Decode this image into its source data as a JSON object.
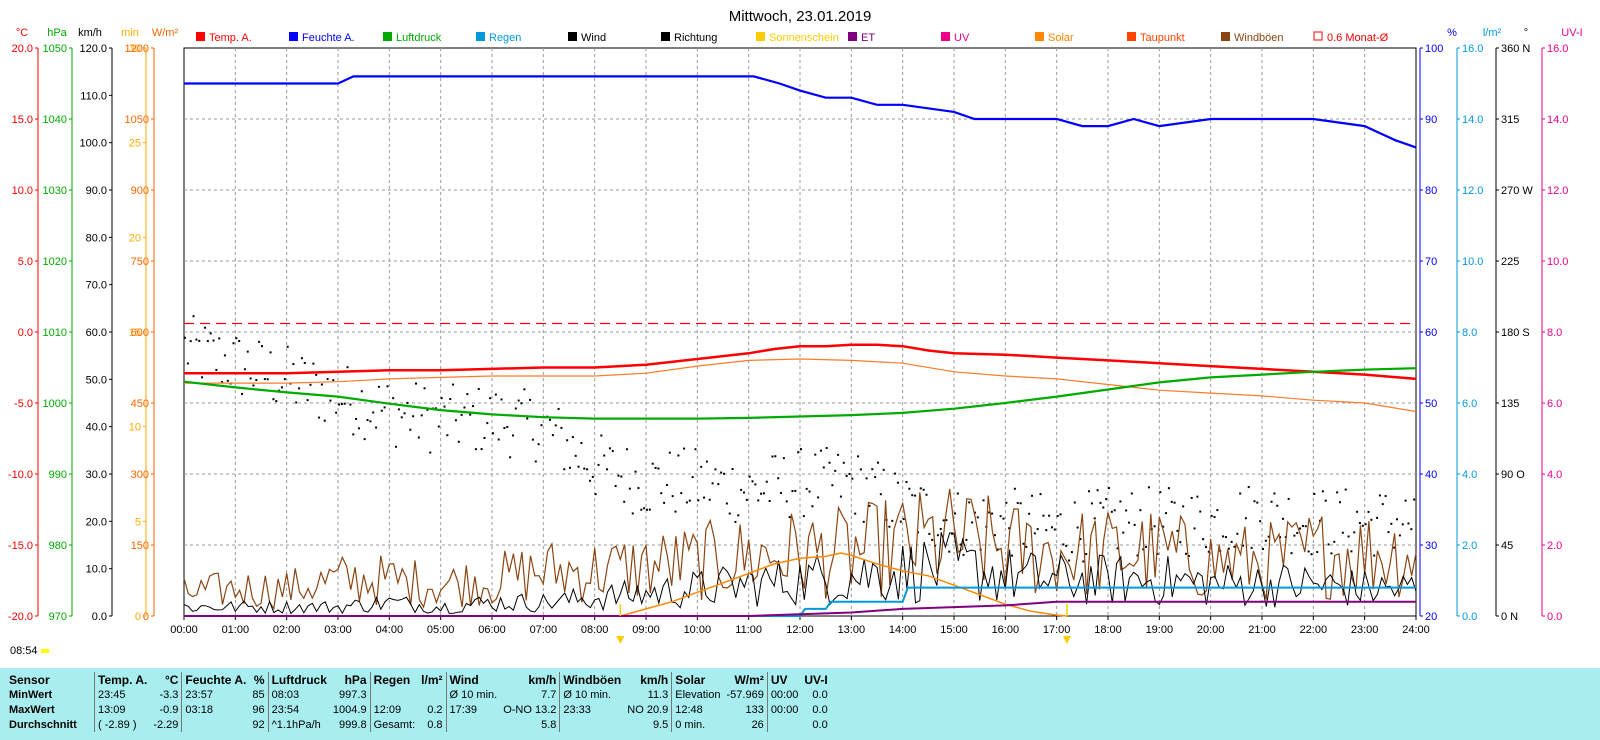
{
  "title": "Mittwoch, 23.01.2019",
  "current_time": "08:54",
  "legend": [
    {
      "label": "Temp. A.",
      "color": "#ff0000"
    },
    {
      "label": "Feuchte A.",
      "color": "#0000ff"
    },
    {
      "label": "Luftdruck",
      "color": "#00aa00"
    },
    {
      "label": "Regen",
      "color": "#0099dd"
    },
    {
      "label": "Wind",
      "color": "#000000"
    },
    {
      "label": "Richtung",
      "color": "#000000"
    },
    {
      "label": "Sonnenschein",
      "color": "#ffcc00"
    },
    {
      "label": "ET",
      "color": "#800080"
    },
    {
      "label": "UV",
      "color": "#ee0088"
    },
    {
      "label": "Solar",
      "color": "#ff8800"
    },
    {
      "label": "Taupunkt",
      "color": "#ff4400"
    },
    {
      "label": "Windböen",
      "color": "#8b4513"
    },
    {
      "label": "0.6 Monat-Ø",
      "color": "#ff0000",
      "outline": true
    }
  ],
  "axes": {
    "temp": {
      "unit": "°C",
      "ticks": [
        "20.0",
        "15.0",
        "10.0",
        "5.0",
        "0.0",
        "-5.0",
        "-10.0",
        "-15.0",
        "-20.0"
      ],
      "color": "#ff0000"
    },
    "press": {
      "unit": "hPa",
      "ticks": [
        "1050",
        "1040",
        "1030",
        "1020",
        "1010",
        "1000",
        "990",
        "980",
        "970"
      ],
      "color": "#00aa00"
    },
    "wind": {
      "unit": "km/h",
      "ticks": [
        "120.0",
        "110.0",
        "100.0",
        "90.0",
        "80.0",
        "70.0",
        "60.0",
        "50.0",
        "40.0",
        "30.0",
        "20.0",
        "10.0",
        "0.0"
      ],
      "color": "#000000"
    },
    "sunmin": {
      "unit": "min",
      "ticks": [
        "30",
        "25",
        "20",
        "15",
        "10",
        "5",
        "0"
      ],
      "color": "#ffaa00"
    },
    "solar": {
      "unit": "W/m²",
      "ticks": [
        "1200",
        "1050",
        "900",
        "750",
        "600",
        "450",
        "300",
        "150",
        "0"
      ],
      "color": "#ff6600"
    },
    "hum": {
      "unit": "%",
      "ticks": [
        "100",
        "90",
        "80",
        "70",
        "60",
        "50",
        "40",
        "30",
        "20"
      ],
      "color": "#0000ff"
    },
    "rain": {
      "unit": "l/m²",
      "ticks": [
        "16.0",
        "14.0",
        "12.0",
        "10.0",
        "8.0",
        "6.0",
        "4.0",
        "2.0",
        "0.0"
      ],
      "color": "#0099dd"
    },
    "dir": {
      "unit": "°",
      "ticks": [
        "360 N",
        "315",
        "270 W",
        "225",
        "180 S",
        "135",
        "90 O",
        "45",
        "0 N"
      ],
      "color": "#000000"
    },
    "uv": {
      "unit": "UV-I",
      "ticks": [
        "16.0",
        "14.0",
        "12.0",
        "10.0",
        "8.0",
        "6.0",
        "4.0",
        "2.0",
        "0.0"
      ],
      "color": "#ee0088"
    },
    "x": {
      "ticks": [
        "00:00",
        "01:00",
        "02:00",
        "03:00",
        "04:00",
        "05:00",
        "06:00",
        "07:00",
        "08:00",
        "09:00",
        "10:00",
        "11:00",
        "12:00",
        "13:00",
        "14:00",
        "15:00",
        "16:00",
        "17:00",
        "18:00",
        "19:00",
        "20:00",
        "21:00",
        "22:00",
        "23:00",
        "24:00"
      ]
    }
  },
  "chart_data": {
    "type": "line",
    "x_unit": "hours",
    "series": [
      {
        "name": "Temp. A.",
        "axis": "temp",
        "color": "#ff0000",
        "x": [
          0,
          2,
          3,
          4,
          5,
          6,
          7,
          8,
          8.5,
          9,
          10,
          11,
          11.5,
          12,
          12.5,
          13,
          13.5,
          14,
          14.5,
          15,
          16,
          17,
          18,
          19,
          20,
          21,
          22,
          23,
          24
        ],
        "y": [
          -2.9,
          -2.9,
          -2.8,
          -2.7,
          -2.7,
          -2.6,
          -2.5,
          -2.5,
          -2.4,
          -2.3,
          -1.9,
          -1.5,
          -1.2,
          -1.0,
          -1.0,
          -0.9,
          -0.9,
          -1.0,
          -1.3,
          -1.5,
          -1.6,
          -1.8,
          -2.0,
          -2.2,
          -2.4,
          -2.6,
          -2.8,
          -3.0,
          -3.3
        ]
      },
      {
        "name": "Taupunkt",
        "axis": "temp",
        "color": "#ff7a2a",
        "x": [
          0,
          2,
          3,
          4,
          5,
          6,
          7,
          8,
          9,
          10,
          11,
          12,
          13,
          14,
          15,
          16,
          17,
          18,
          19,
          20,
          21,
          22,
          23,
          24
        ],
        "y": [
          -3.6,
          -3.6,
          -3.5,
          -3.3,
          -3.2,
          -3.1,
          -3.1,
          -3.1,
          -2.9,
          -2.4,
          -2.0,
          -1.9,
          -2.0,
          -2.2,
          -2.8,
          -3.1,
          -3.3,
          -3.7,
          -4.1,
          -4.3,
          -4.5,
          -4.8,
          -5.0,
          -5.6
        ]
      },
      {
        "name": "Feuchte A.",
        "axis": "hum",
        "color": "#0000ff",
        "x": [
          0,
          3,
          3.3,
          3.6,
          5,
          11,
          11.1,
          11.6,
          12,
          12.5,
          13,
          13.5,
          14,
          15,
          15.4,
          16,
          17,
          17.5,
          18,
          18.5,
          19,
          20,
          21,
          22,
          23,
          23.3,
          23.6,
          24
        ],
        "y": [
          95,
          95,
          96,
          96,
          96,
          96,
          96,
          95,
          94,
          93,
          93,
          92,
          92,
          91,
          90,
          90,
          90,
          89,
          89,
          90,
          89,
          90,
          90,
          90,
          89,
          88,
          87,
          86
        ]
      },
      {
        "name": "Luftdruck",
        "axis": "press",
        "color": "#00aa00",
        "x": [
          0,
          1,
          2,
          3,
          4,
          5,
          6,
          7,
          8,
          9,
          10,
          11,
          12,
          13,
          14,
          15,
          16,
          17,
          18,
          19,
          20,
          21,
          22,
          23,
          24
        ],
        "y": [
          1003.0,
          1002.2,
          1001.5,
          1000.9,
          999.9,
          999.0,
          998.4,
          998.0,
          997.8,
          997.8,
          997.8,
          997.9,
          998.1,
          998.3,
          998.6,
          999.2,
          1000.0,
          1000.9,
          1001.9,
          1002.9,
          1003.6,
          1004.0,
          1004.4,
          1004.7,
          1004.9
        ]
      },
      {
        "name": "Solar",
        "axis": "solar",
        "color": "#ff8800",
        "x": [
          8.5,
          9,
          9.5,
          10,
          10.5,
          11,
          11.5,
          12,
          12.5,
          12.8,
          13,
          13.5,
          14,
          14.5,
          15,
          15.5,
          16,
          16.5,
          17,
          17.2
        ],
        "y": [
          0,
          15,
          30,
          50,
          70,
          90,
          110,
          122,
          126,
          133,
          128,
          110,
          95,
          85,
          65,
          45,
          25,
          10,
          2,
          0
        ]
      },
      {
        "name": "Regen",
        "axis": "rain",
        "color": "#0099dd",
        "x": [
          0,
          12,
          12.1,
          12.5,
          12.6,
          14,
          14.1,
          24
        ],
        "y": [
          0,
          0,
          0.2,
          0.2,
          0.4,
          0.4,
          0.8,
          0.8
        ]
      },
      {
        "name": "ET",
        "axis": "rain",
        "color": "#800080",
        "x": [
          0,
          11,
          12,
          13,
          14,
          16,
          17,
          24
        ],
        "y": [
          0,
          0,
          0.05,
          0.1,
          0.2,
          0.3,
          0.4,
          0.4
        ]
      }
    ],
    "reference_lines": [
      {
        "name": "0.6 Monat-Ø",
        "axis": "temp",
        "value": 0.6,
        "color": "#ff0000",
        "style": "dashed"
      }
    ],
    "markers": [
      {
        "x": 8.5,
        "color": "#ffcc00"
      },
      {
        "x": 17.2,
        "color": "#ffcc00"
      }
    ],
    "wind_series": {
      "name": "Wind",
      "axis": "wind",
      "color": "#000000",
      "hourly_base": [
        2,
        2,
        2,
        2,
        3,
        2,
        3,
        3,
        4,
        5,
        6,
        7,
        8,
        9,
        10,
        11,
        9,
        8,
        8,
        8,
        7,
        7,
        7,
        6
      ]
    },
    "gust_series": {
      "name": "Windböen",
      "axis": "wind",
      "color": "#8b4513",
      "hourly_base": [
        5,
        6,
        6,
        8,
        8,
        7,
        8,
        10,
        10,
        11,
        12,
        13,
        14,
        14,
        16,
        17,
        15,
        14,
        14,
        14,
        12,
        12,
        14,
        14
      ]
    },
    "direction_series": {
      "name": "Richtung",
      "axis": "dir",
      "color": "#000000",
      "hourly_base": [
        170,
        160,
        150,
        140,
        130,
        125,
        125,
        120,
        95,
        85,
        85,
        80,
        85,
        85,
        70,
        60,
        60,
        55,
        60,
        60,
        60,
        65,
        60,
        60
      ]
    }
  },
  "stats": {
    "headers": [
      "Sensor",
      "Temp. A.",
      "°C",
      "Feuchte A.",
      "%",
      "Luftdruck",
      "hPa",
      "Regen",
      "l/m²",
      "Wind",
      "km/h",
      "Windböen",
      "km/h",
      "Solar",
      "W/m²",
      "UV",
      "UV-I"
    ],
    "rows": [
      {
        "label": "MinWert",
        "cells": [
          "23:45",
          "-3.3",
          "23:57",
          "85",
          "08:03",
          "997.3",
          "",
          "",
          "Ø 10 min.",
          "7.7",
          "Ø 10 min.",
          "11.3",
          "Elevation",
          "-57.969",
          "00:00",
          "0.0"
        ]
      },
      {
        "label": "MaxWert",
        "cells": [
          "13:09",
          "-0.9",
          "03:18",
          "96",
          "23:54",
          "1004.9",
          "12:09",
          "0.2",
          "17:39",
          "O-NO 13.2",
          "23:33",
          "NO 20.9",
          "12:48",
          "133",
          "00:00",
          "0.0"
        ]
      },
      {
        "label": "Durchschnitt",
        "cells": [
          "( -2.89 )",
          "-2.29",
          "",
          "92",
          "^1.1hPa/h",
          "999.8",
          "Gesamt:",
          "0.8",
          "",
          "5.8",
          "",
          "9.5",
          "0 min.",
          "26",
          "",
          "0.0"
        ]
      }
    ]
  }
}
